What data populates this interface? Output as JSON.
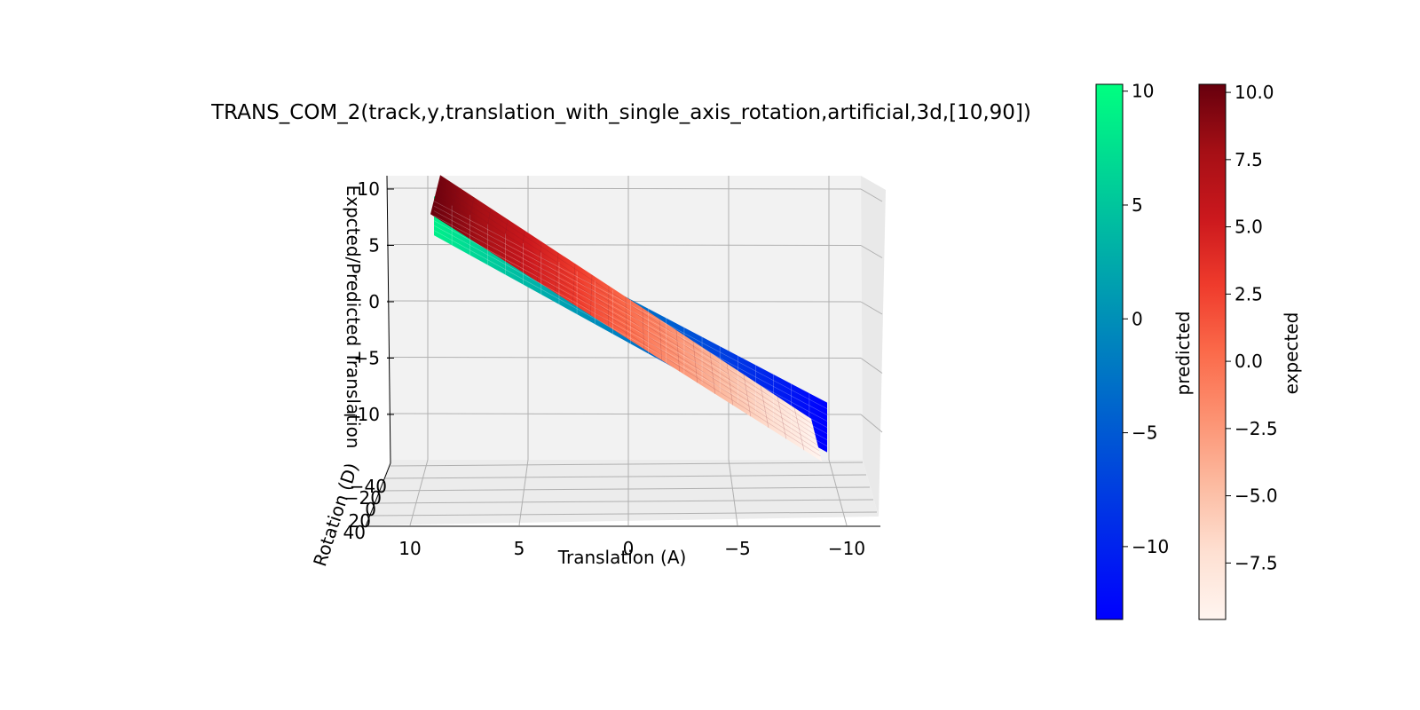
{
  "chart_data": {
    "type": "surface3d",
    "title": "TRANS_COM_2(track,y,translation_with_single_axis_rotation,artificial,3d,[10,90])",
    "xlabel": "Translation (A)",
    "ylabel": "Rotation (D)",
    "zlabel": "Expcted/Predicted Translation",
    "x_ticks": [
      "10",
      "5",
      "0",
      "−5",
      "−10"
    ],
    "x_tick_values": [
      10,
      5,
      0,
      -5,
      -10
    ],
    "y_ticks": [
      "−40",
      "−20",
      "0",
      "20",
      "40"
    ],
    "z_ticks": [
      "10",
      "5",
      "0",
      "−5",
      "−10"
    ],
    "z_tick_values": [
      10,
      5,
      0,
      -5,
      -10
    ],
    "xlim": [
      -10,
      10
    ],
    "ylim": [
      -40,
      40
    ],
    "zlim": [
      -13,
      11
    ],
    "series": [
      {
        "name": "expected",
        "colormap": "Reds",
        "z_at_x10": 10.3,
        "z_at_xneg10": -9.6,
        "tilt_with_rotation": "small"
      },
      {
        "name": "predicted",
        "colormap": "winter",
        "z_at_x10": 7.0,
        "z_at_xneg10": -13.2,
        "tilt_with_rotation": "large"
      }
    ],
    "colorbars": [
      {
        "label": "predicted",
        "colors": [
          "#00ff80",
          "#0000ff"
        ],
        "ticks": [
          "10",
          "5",
          "0",
          "−5",
          "−10"
        ],
        "tick_values": [
          10,
          5,
          0,
          -5,
          -10
        ],
        "range": [
          -13.2,
          10.3
        ]
      },
      {
        "label": "expected",
        "colors": [
          "#67000d",
          "#a50f15",
          "#cb181d",
          "#ef3b2c",
          "#fb6a4a",
          "#fc9272",
          "#fcbba1",
          "#fee0d2",
          "#fff5f0"
        ],
        "ticks": [
          "10.0",
          "7.5",
          "5.0",
          "2.5",
          "0.0",
          "−2.5",
          "−5.0",
          "−7.5"
        ],
        "tick_values": [
          10,
          7.5,
          5,
          2.5,
          0,
          -2.5,
          -5,
          -7.5
        ],
        "range": [
          -9.6,
          10.3
        ]
      }
    ]
  }
}
